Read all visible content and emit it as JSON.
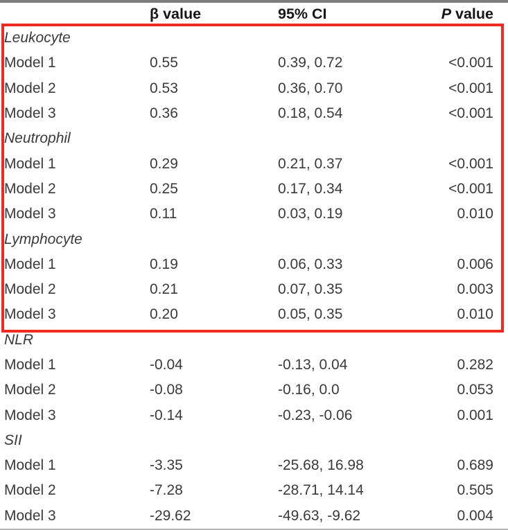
{
  "colors": {
    "annotation_red": "#ee2a22",
    "top_rule": "#7d7d7d",
    "bottom_rule": "#b5b5b5",
    "body_text": "#3a3a3a",
    "header_text": "#161616"
  },
  "header": {
    "col_label": "",
    "col_beta": "β value",
    "col_ci": "95% CI",
    "col_p_italic": "P",
    "col_p_rest": " value"
  },
  "table": {
    "rows": [
      {
        "type": "group",
        "label": "Leukocyte",
        "beta": "",
        "ci": "",
        "p": ""
      },
      {
        "type": "model",
        "label": "Model 1",
        "beta": "0.55",
        "ci": "0.39, 0.72",
        "p": "<0.001"
      },
      {
        "type": "model",
        "label": "Model 2",
        "beta": "0.53",
        "ci": "0.36, 0.70",
        "p": "<0.001"
      },
      {
        "type": "model",
        "label": "Model 3",
        "beta": "0.36",
        "ci": "0.18, 0.54",
        "p": "<0.001"
      },
      {
        "type": "group",
        "label": "Neutrophil",
        "beta": "",
        "ci": "",
        "p": ""
      },
      {
        "type": "model",
        "label": "Model 1",
        "beta": "0.29",
        "ci": "0.21, 0.37",
        "p": "<0.001"
      },
      {
        "type": "model",
        "label": "Model 2",
        "beta": "0.25",
        "ci": "0.17, 0.34",
        "p": "<0.001"
      },
      {
        "type": "model",
        "label": "Model 3",
        "beta": "0.11",
        "ci": "0.03, 0.19",
        "p": "0.010"
      },
      {
        "type": "group",
        "label": "Lymphocyte",
        "beta": "",
        "ci": "",
        "p": ""
      },
      {
        "type": "model",
        "label": "Model 1",
        "beta": "0.19",
        "ci": "0.06, 0.33",
        "p": "0.006"
      },
      {
        "type": "model",
        "label": "Model 2",
        "beta": "0.21",
        "ci": "0.07, 0.35",
        "p": "0.003"
      },
      {
        "type": "model",
        "label": "Model 3",
        "beta": "0.20",
        "ci": "0.05, 0.35",
        "p": "0.010"
      },
      {
        "type": "group",
        "label": "NLR",
        "beta": "",
        "ci": "",
        "p": ""
      },
      {
        "type": "model",
        "label": "Model 1",
        "beta": "-0.04",
        "ci": "-0.13, 0.04",
        "p": "0.282"
      },
      {
        "type": "model",
        "label": "Model 2",
        "beta": "-0.08",
        "ci": "-0.16, 0.0",
        "p": "0.053"
      },
      {
        "type": "model",
        "label": "Model 3",
        "beta": "-0.14",
        "ci": "-0.23, -0.06",
        "p": "0.001"
      },
      {
        "type": "group",
        "label": "SII",
        "beta": "",
        "ci": "",
        "p": ""
      },
      {
        "type": "model",
        "label": "Model 1",
        "beta": "-3.35",
        "ci": "-25.68, 16.98",
        "p": "0.689"
      },
      {
        "type": "model",
        "label": "Model 2",
        "beta": "-7.28",
        "ci": "-28.71, 14.14",
        "p": "0.505"
      },
      {
        "type": "model",
        "label": "Model 3",
        "beta": "-29.62",
        "ci": "-49.63, -9.62",
        "p": "0.004"
      }
    ]
  },
  "annotation": {
    "shape": "rectangle",
    "color": "#ee2a22"
  }
}
